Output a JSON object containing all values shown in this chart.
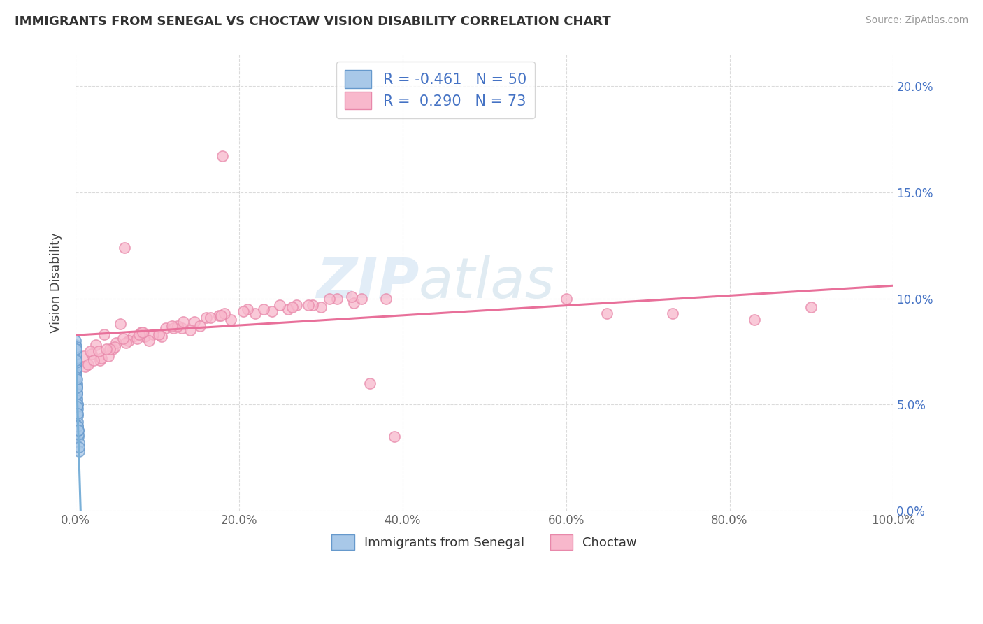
{
  "title": "IMMIGRANTS FROM SENEGAL VS CHOCTAW VISION DISABILITY CORRELATION CHART",
  "source": "Source: ZipAtlas.com",
  "ylabel": "Vision Disability",
  "xmin": 0.0,
  "xmax": 100.0,
  "ymin": 0.0,
  "ymax": 0.215,
  "yticks": [
    0.0,
    0.05,
    0.1,
    0.15,
    0.2
  ],
  "ytick_labels": [
    "0.0%",
    "5.0%",
    "10.0%",
    "15.0%",
    "20.0%"
  ],
  "xticks": [
    0.0,
    20.0,
    40.0,
    60.0,
    80.0,
    100.0
  ],
  "xtick_labels": [
    "0.0%",
    "20.0%",
    "40.0%",
    "60.0%",
    "80.0%",
    "100.0%"
  ],
  "legend1_label": "R = -0.461   N = 50",
  "legend2_label": "R =  0.290   N = 73",
  "color_senegal": "#a8c8e8",
  "color_senegal_edge": "#6699cc",
  "color_choctaw": "#f8b8cc",
  "color_choctaw_edge": "#e888aa",
  "color_senegal_line": "#7ab0d8",
  "color_choctaw_line": "#e8709a",
  "color_text_blue": "#4472c4",
  "background_color": "#ffffff",
  "grid_color": "#cccccc",
  "watermark_zip": "ZIP",
  "watermark_atlas": "atlas",
  "senegal_x": [
    0.1,
    0.2,
    0.15,
    0.05,
    0.08,
    0.25,
    0.18,
    0.3,
    0.12,
    0.07,
    0.35,
    0.4,
    0.09,
    0.11,
    0.14,
    0.22,
    0.06,
    0.13,
    0.28,
    0.32,
    0.04,
    0.06,
    0.45,
    0.19,
    0.38,
    0.03,
    0.08,
    0.16,
    0.07,
    0.05,
    0.1,
    0.2,
    0.09,
    0.42,
    0.11,
    0.06,
    0.26,
    0.17,
    0.08,
    0.07,
    0.3,
    0.23,
    0.33,
    0.05,
    0.15,
    0.21,
    0.09,
    0.06,
    0.24,
    0.13
  ],
  "senegal_y": [
    0.065,
    0.055,
    0.06,
    0.075,
    0.07,
    0.048,
    0.058,
    0.04,
    0.068,
    0.072,
    0.035,
    0.032,
    0.066,
    0.064,
    0.056,
    0.05,
    0.071,
    0.059,
    0.042,
    0.036,
    0.078,
    0.073,
    0.028,
    0.047,
    0.038,
    0.08,
    0.069,
    0.053,
    0.074,
    0.076,
    0.067,
    0.052,
    0.07,
    0.03,
    0.063,
    0.075,
    0.045,
    0.055,
    0.072,
    0.074,
    0.04,
    0.05,
    0.038,
    0.077,
    0.058,
    0.049,
    0.071,
    0.076,
    0.046,
    0.062
  ],
  "choctaw_x": [
    1.0,
    2.5,
    1.2,
    3.5,
    5.5,
    8.5,
    11.0,
    4.5,
    3.0,
    5.0,
    7.0,
    13.0,
    16.0,
    6.5,
    2.0,
    18.0,
    8.0,
    10.5,
    14.5,
    12.0,
    22.0,
    26.0,
    1.8,
    4.8,
    7.5,
    9.5,
    12.5,
    17.5,
    21.0,
    3.2,
    30.0,
    34.0,
    38.0,
    65.0,
    83.0,
    90.0,
    1.5,
    2.2,
    4.0,
    6.0,
    9.0,
    14.0,
    19.0,
    24.0,
    29.0,
    35.0,
    2.8,
    7.8,
    11.8,
    16.5,
    20.5,
    27.0,
    32.0,
    23.0,
    28.5,
    6.2,
    10.2,
    15.2,
    4.2,
    8.2,
    13.2,
    18.2,
    25.0,
    31.0,
    60.0,
    73.0,
    3.8,
    17.8,
    5.8,
    33.8,
    36.0,
    39.0,
    26.5
  ],
  "choctaw_y": [
    0.073,
    0.078,
    0.068,
    0.083,
    0.088,
    0.082,
    0.086,
    0.076,
    0.071,
    0.079,
    0.082,
    0.086,
    0.091,
    0.08,
    0.074,
    0.167,
    0.084,
    0.082,
    0.089,
    0.086,
    0.093,
    0.095,
    0.075,
    0.077,
    0.081,
    0.083,
    0.087,
    0.092,
    0.095,
    0.072,
    0.096,
    0.098,
    0.1,
    0.093,
    0.09,
    0.096,
    0.069,
    0.071,
    0.073,
    0.124,
    0.08,
    0.085,
    0.09,
    0.094,
    0.097,
    0.1,
    0.075,
    0.083,
    0.087,
    0.091,
    0.094,
    0.097,
    0.1,
    0.095,
    0.097,
    0.079,
    0.083,
    0.087,
    0.076,
    0.084,
    0.089,
    0.093,
    0.097,
    0.1,
    0.1,
    0.093,
    0.076,
    0.092,
    0.081,
    0.101,
    0.06,
    0.035,
    0.096
  ]
}
